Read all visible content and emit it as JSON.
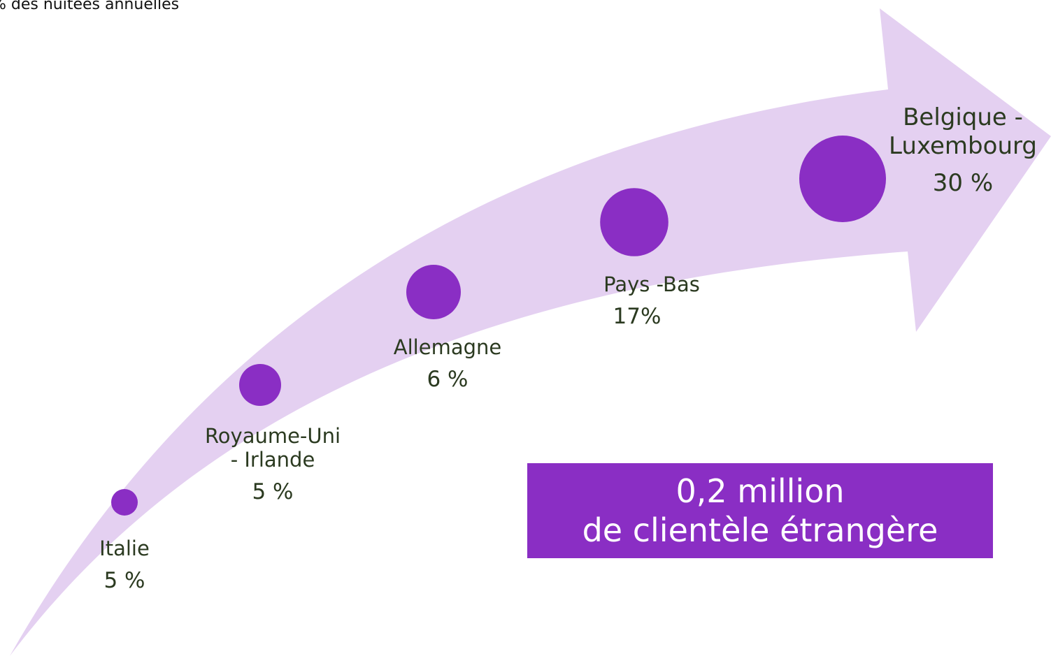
{
  "caption": "% des nuitées annuelles",
  "colors": {
    "arrow": "#e4d0f1",
    "marker": "#8a2ec4",
    "label": "#2b3a20",
    "banner": "#8a2ec4",
    "banner_text": "#ffffff"
  },
  "banner": {
    "line1": "0,2 million",
    "line2": "de clientèle étrangère"
  },
  "chart_data": {
    "type": "bubble",
    "title": "",
    "unit": "% des nuitées annuelles",
    "categories": [
      "Italie",
      "Royaume-Uni - Irlande",
      "Allemagne",
      "Pays -Bas",
      "Belgique - Luxembourg"
    ],
    "values": [
      5,
      5,
      6,
      17,
      30
    ],
    "value_labels": [
      "5 %",
      "5 %",
      "6 %",
      "17%",
      "30 %"
    ]
  },
  "labels": [
    {
      "name_lines": [
        "Italie"
      ],
      "pct": "5 %"
    },
    {
      "name_lines": [
        "Royaume-Uni",
        "- Irlande"
      ],
      "pct": "5 %"
    },
    {
      "name_lines": [
        "Allemagne"
      ],
      "pct": "6 %"
    },
    {
      "name_lines": [
        "Pays -Bas"
      ],
      "pct": "17%"
    },
    {
      "name_lines": [
        "Belgique -",
        "Luxembourg"
      ],
      "pct": "30 %"
    }
  ]
}
